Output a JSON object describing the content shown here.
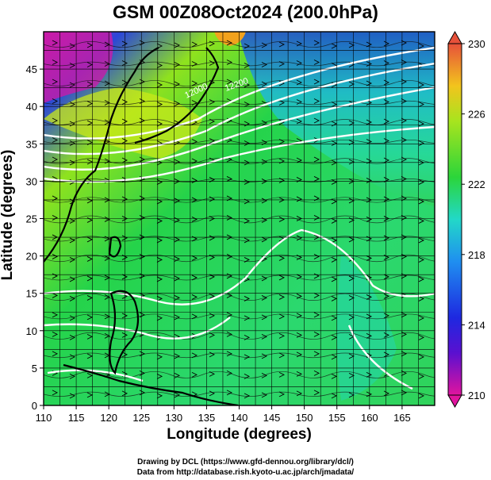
{
  "title": "GSM 00Z08Oct2024 (200.0hPa)",
  "x_axis": {
    "label": "Longitude (degrees)",
    "range": [
      110,
      170
    ],
    "ticks": [
      "110",
      "115",
      "120",
      "125",
      "130",
      "135",
      "140",
      "145",
      "150",
      "155",
      "160",
      "165"
    ]
  },
  "y_axis": {
    "label": "Latitude (degrees)",
    "range": [
      0,
      50
    ],
    "ticks": [
      "0",
      "5",
      "10",
      "15",
      "20",
      "25",
      "30",
      "35",
      "40",
      "45"
    ]
  },
  "colorbar": {
    "ticks": [
      "230",
      "226",
      "222",
      "218",
      "214",
      "210"
    ],
    "range": [
      210,
      230
    ],
    "colors": [
      "#e0149e",
      "#3b1fd6",
      "#1f8ff0",
      "#23d6a8",
      "#33d21e",
      "#c9e81a",
      "#f2a21d",
      "#e7513a"
    ]
  },
  "contour_labels": [
    "12000",
    "12200"
  ],
  "credits": {
    "line1": "Drawing by DCL (https://www.gfd-dennou.org/library/dcl/)",
    "line2": "Data from http://database.rish.kyoto-u.ac.jp/arch/jmadata/"
  }
}
